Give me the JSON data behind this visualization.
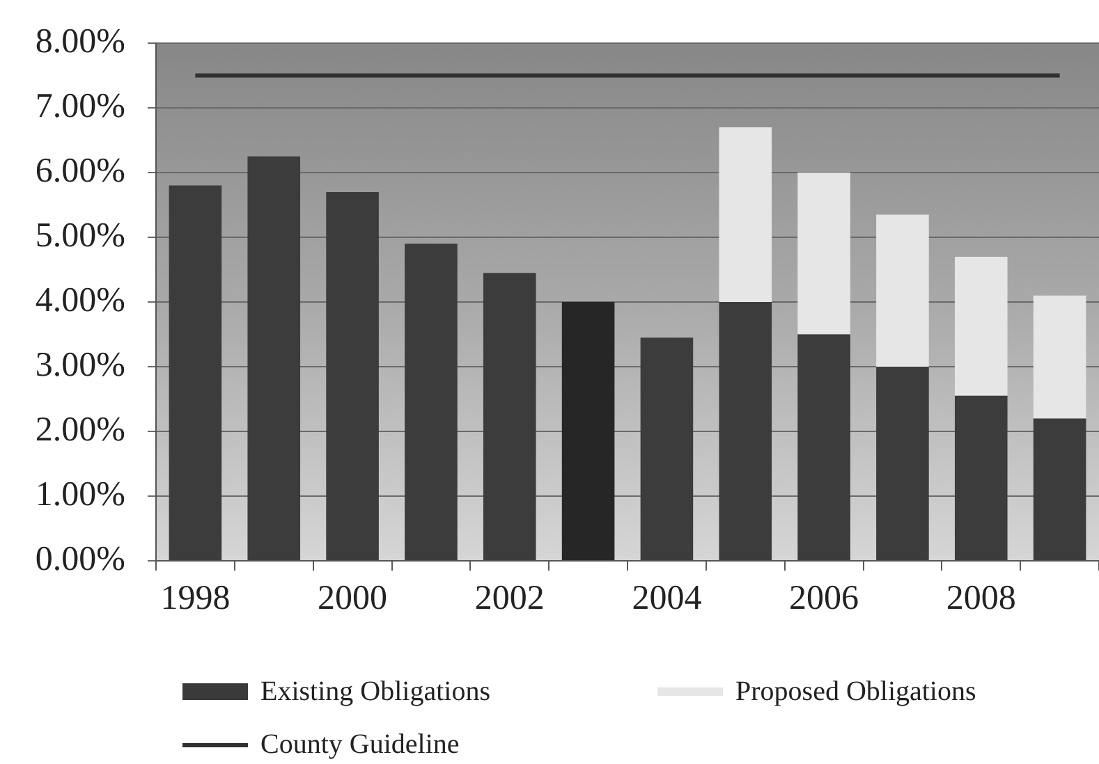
{
  "chart_data": {
    "type": "bar",
    "stacked": true,
    "categories": [
      "1998",
      null,
      "2000",
      null,
      "2002",
      null,
      "2004",
      null,
      "2006",
      null,
      "2008",
      null
    ],
    "series": [
      {
        "name": "Existing Obligations",
        "color": "#3a3a3a",
        "colors": [
          "#3c3c3c",
          "#3c3c3c",
          "#3c3c3c",
          "#3c3c3c",
          "#3c3c3c",
          "#262626",
          "#3c3c3c",
          "#3c3c3c",
          "#3c3c3c",
          "#3c3c3c",
          "#3c3c3c",
          "#3c3c3c"
        ],
        "values": [
          5.8,
          6.25,
          5.7,
          4.9,
          4.45,
          4.0,
          3.45,
          4.0,
          3.5,
          3.0,
          2.55,
          2.2
        ]
      },
      {
        "name": "Proposed Obligations",
        "color": "#e6e6e6",
        "values": [
          null,
          null,
          null,
          null,
          null,
          null,
          null,
          2.7,
          2.5,
          2.35,
          2.15,
          1.9
        ]
      },
      {
        "name": "County Guideline",
        "type": "line",
        "color": "#303030",
        "values": [
          7.5,
          7.5,
          7.5,
          7.5,
          7.5,
          7.5,
          7.5,
          7.5,
          7.5,
          7.5,
          7.5,
          7.5
        ]
      }
    ],
    "ylim": [
      0,
      8
    ],
    "yticks": [
      {
        "value": 0,
        "label": "0.00%"
      },
      {
        "value": 1,
        "label": "1.00%"
      },
      {
        "value": 2,
        "label": "2.00%"
      },
      {
        "value": 3,
        "label": "3.00%"
      },
      {
        "value": 4,
        "label": "4.00%"
      },
      {
        "value": 5,
        "label": "5.00%"
      },
      {
        "value": 6,
        "label": "6.00%"
      },
      {
        "value": 7,
        "label": "7.00%"
      },
      {
        "value": 8,
        "label": "8.00%"
      }
    ],
    "grid": "y",
    "legend": "bottom",
    "marker": "none"
  }
}
